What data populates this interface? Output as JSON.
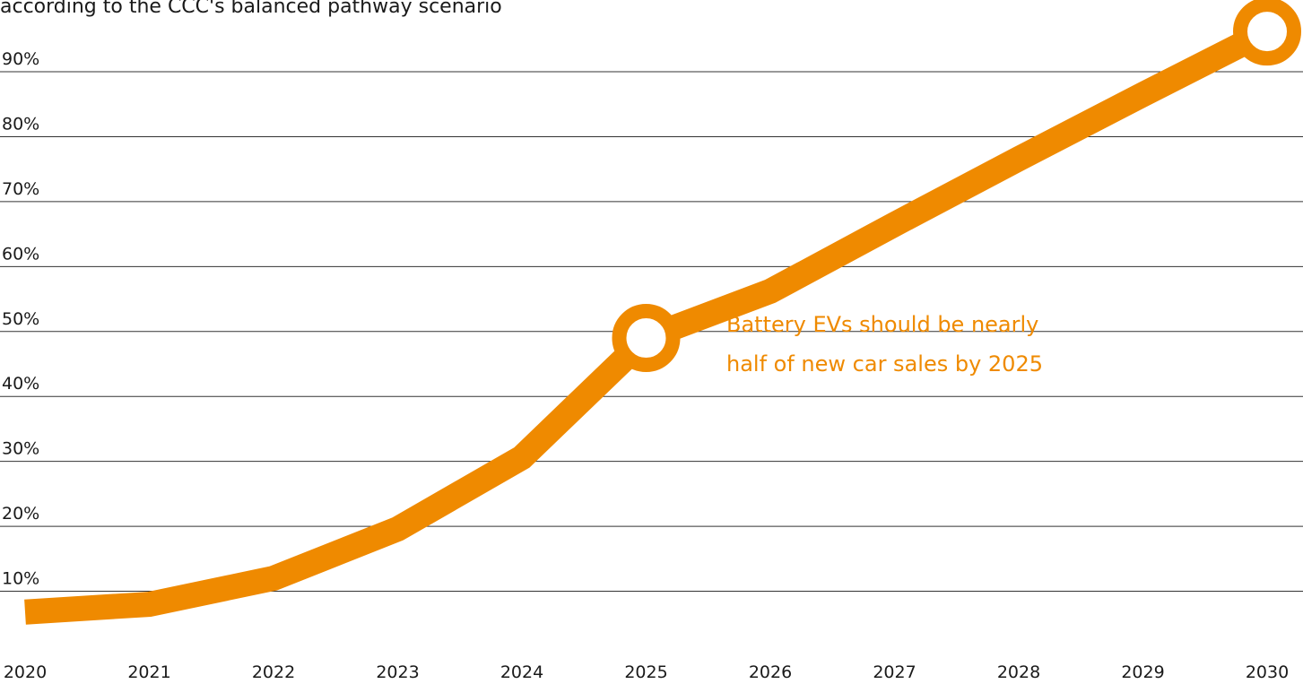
{
  "chart_data": {
    "type": "line",
    "subtitle": "according to the CCC's balanced pathway scenario",
    "x": [
      2020,
      2021,
      2022,
      2023,
      2024,
      2025,
      2026,
      2027,
      2028,
      2029,
      2030
    ],
    "series": [
      {
        "name": "Battery EVs",
        "color": "#ef8a00",
        "values": [
          6.8,
          8.0,
          12,
          19.6,
          30.6,
          49,
          56.2,
          66.5,
          76.6,
          86.5,
          96.2
        ]
      }
    ],
    "xlim": [
      2020,
      2030
    ],
    "xticks": [
      2020,
      2021,
      2022,
      2023,
      2024,
      2025,
      2026,
      2027,
      2028,
      2029,
      2030
    ],
    "ylim": [
      0,
      100
    ],
    "yticks": [
      {
        "value": 10,
        "label": "10%"
      },
      {
        "value": 20,
        "label": "20%"
      },
      {
        "value": 30,
        "label": "30%"
      },
      {
        "value": 40,
        "label": "40%"
      },
      {
        "value": 50,
        "label": "50%"
      },
      {
        "value": 60,
        "label": "60%"
      },
      {
        "value": 70,
        "label": "70%"
      },
      {
        "value": 80,
        "label": "80%"
      },
      {
        "value": 90,
        "label": "90%"
      }
    ],
    "grid": true,
    "markers": [
      5,
      10
    ],
    "annotation": [
      "Battery EVs should be nearly",
      "half of new car sales by 2025"
    ]
  }
}
